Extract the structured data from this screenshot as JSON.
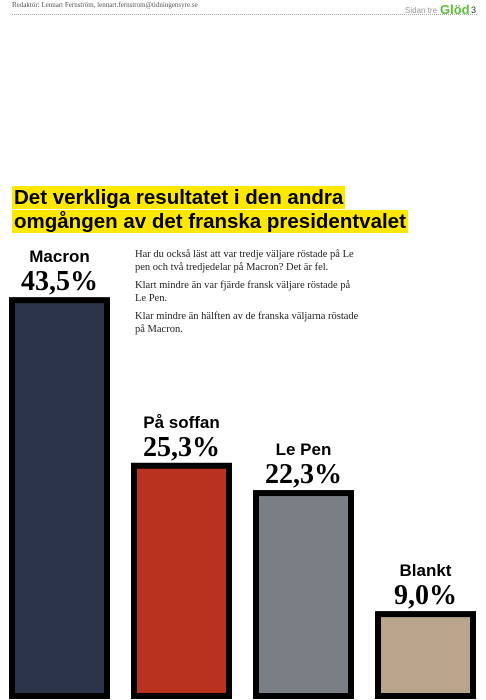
{
  "header": {
    "byline": "Redaktör: Lennart Fernström, lennart.fernstrom@tidningensyre.se",
    "section": "Sidan tre",
    "brand": "Glöd",
    "page": "3"
  },
  "chart_data": {
    "type": "bar",
    "title": [
      "Det verkliga resultatet i den andra",
      "omgången av det franska presidentvalet"
    ],
    "notes": [
      "Har du också läst att var tredje väljare röstade på Le pen och två tredjedelar på Macron? Det är fel.",
      "Klart mindre än var fjärde fransk väljare röstade på Le Pen.",
      "Klar mindre än hälften av de franska väljarna röstade på Macron."
    ],
    "categories": [
      "Macron",
      "På soffan",
      "Le Pen",
      "Blankt"
    ],
    "values": [
      43.5,
      25.3,
      22.3,
      9.0
    ],
    "value_labels": [
      "43,5%",
      "25,3%",
      "22,3%",
      "9,0%"
    ],
    "colors": [
      "#2b3448",
      "#b8321f",
      "#7a7f86",
      "#b9a58c"
    ]
  }
}
